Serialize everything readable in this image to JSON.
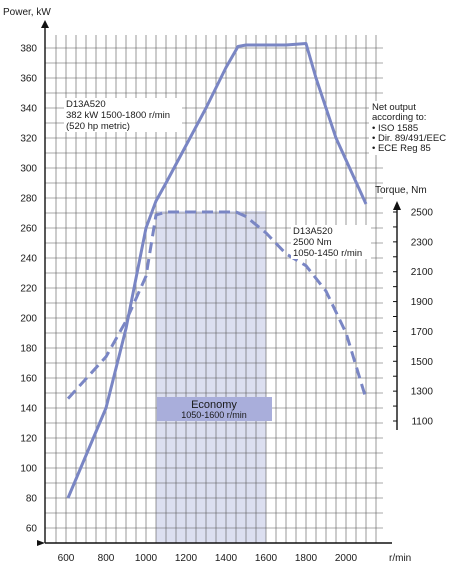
{
  "chart_data": {
    "type": "line",
    "x": {
      "label": "r/min",
      "ticks": [
        600,
        800,
        1000,
        1200,
        1400,
        1600,
        1800,
        2000
      ],
      "range": [
        600,
        2100
      ]
    },
    "y_left": {
      "label": "Power, kW",
      "ticks": [
        60,
        80,
        100,
        120,
        140,
        160,
        180,
        200,
        220,
        240,
        260,
        280,
        300,
        320,
        340,
        360,
        380
      ],
      "range": [
        60,
        390
      ]
    },
    "y_right": {
      "label": "Torque, Nm",
      "ticks": [
        1100,
        1200,
        1300,
        1400,
        1500,
        1600,
        1700,
        1800,
        1900,
        2000,
        2100,
        2200,
        2300,
        2400,
        2500
      ],
      "labeled_ticks": [
        1100,
        1300,
        1500,
        1700,
        1900,
        2100,
        2300,
        2500
      ],
      "range": [
        1100,
        2500
      ]
    },
    "grid": true,
    "series": [
      {
        "axis": "left",
        "style": "solid",
        "color": "#7a86c4",
        "points": [
          [
            610,
            80
          ],
          [
            800,
            140
          ],
          [
            900,
            193
          ],
          [
            1000,
            260
          ],
          [
            1050,
            278
          ],
          [
            1100,
            290
          ],
          [
            1200,
            315
          ],
          [
            1300,
            340
          ],
          [
            1400,
            367
          ],
          [
            1460,
            381
          ],
          [
            1500,
            382
          ],
          [
            1600,
            382
          ],
          [
            1700,
            382
          ],
          [
            1800,
            383
          ],
          [
            1850,
            360
          ],
          [
            1950,
            320
          ],
          [
            2100,
            276
          ]
        ]
      },
      {
        "axis": "right",
        "style": "dashed",
        "color": "#7a86c4",
        "points": [
          [
            610,
            1250
          ],
          [
            800,
            1530
          ],
          [
            900,
            1770
          ],
          [
            1000,
            2070
          ],
          [
            1050,
            2480
          ],
          [
            1100,
            2500
          ],
          [
            1200,
            2500
          ],
          [
            1300,
            2500
          ],
          [
            1400,
            2500
          ],
          [
            1450,
            2500
          ],
          [
            1500,
            2470
          ],
          [
            1600,
            2360
          ],
          [
            1700,
            2220
          ],
          [
            1800,
            2140
          ],
          [
            1900,
            1970
          ],
          [
            2000,
            1690
          ],
          [
            2100,
            1250
          ]
        ]
      }
    ],
    "economy_band": {
      "x_range": [
        1050,
        1600
      ],
      "label_title": "Economy",
      "label_range": "1050-1600 r/min",
      "fill": "#dcdff0",
      "label_fill": "#a9aedb"
    },
    "annotations": {
      "power_rating": [
        "D13A520",
        "382 kW 1500-1800 r/min",
        "(520 hp metric)"
      ],
      "torque_rating": [
        "D13A520",
        "2500 Nm",
        "1050-1450 r/min"
      ],
      "net_output": [
        "Net output",
        "according to:",
        "• ISO 1585",
        "• Dir. 89/491/EEC",
        "• ECE Reg 85"
      ]
    }
  }
}
